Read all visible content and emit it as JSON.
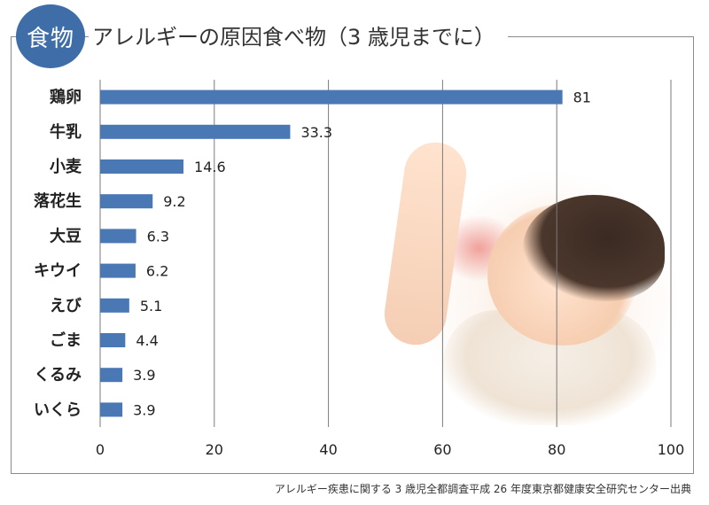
{
  "badge": "食物",
  "title": "アレルギーの原因食べ物（3 歳児までに）",
  "source_note": "アレルギー疾患に関する 3 歳児全都調査平成 26 年度東京都健康安全研究センター出典",
  "colors": {
    "bar": "#4a78b5",
    "badge": "#3f6da8",
    "grid": "#7a7a7a"
  },
  "chart_data": {
    "type": "bar",
    "orientation": "horizontal",
    "categories": [
      "鶏卵",
      "牛乳",
      "小麦",
      "落花生",
      "大豆",
      "キウイ",
      "えび",
      "ごま",
      "くるみ",
      "いくら"
    ],
    "values": [
      81,
      33.3,
      14.6,
      9.2,
      6.3,
      6.2,
      5.1,
      4.4,
      3.9,
      3.9
    ],
    "value_labels": [
      "81",
      "33.3",
      "14.6",
      "9.2",
      "6.3",
      "6.2",
      "5.1",
      "4.4",
      "3.9",
      "3.9"
    ],
    "xlim": [
      0,
      100
    ],
    "xticks": [
      0,
      20,
      40,
      60,
      80,
      100
    ],
    "grid": true
  }
}
